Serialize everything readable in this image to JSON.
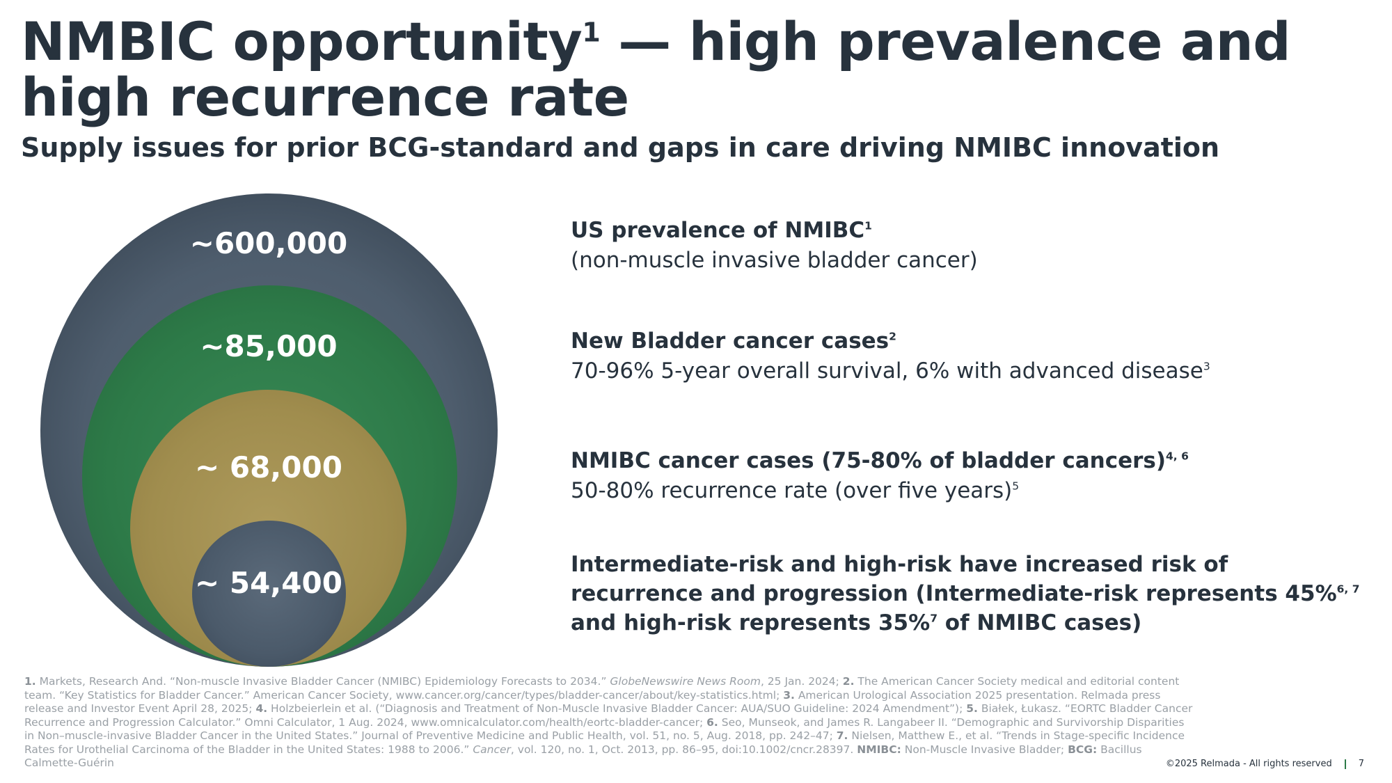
{
  "slide": {
    "title_main": "NMBIC opportunity",
    "title_sup": "1",
    "title_rest": " — high prevalence and high recurrence rate",
    "subtitle": "Supply issues for prior BCG-standard and gaps in care driving NMIBC innovation"
  },
  "circles": [
    {
      "value": "~600,000",
      "color": "#4e5d6d"
    },
    {
      "value": "~85,000",
      "color": "#2d7a48"
    },
    {
      "value": "~ 68,000",
      "color": "#a08d4e"
    },
    {
      "value": "~ 54,400",
      "color": "#4b5a6a"
    }
  ],
  "rows": [
    {
      "heading": "US prevalence of NMIBC",
      "heading_sup": "1",
      "detail": "(non-muscle invasive bladder cancer)",
      "detail_sup": ""
    },
    {
      "heading": "New Bladder cancer cases",
      "heading_sup": "2",
      "detail": "70-96% 5-year overall survival, 6% with advanced disease",
      "detail_sup": "3"
    },
    {
      "heading": "NMIBC cancer cases (75-80% of bladder cancers)",
      "heading_sup": "4, 6",
      "detail": "50-80% recurrence rate (over five years)",
      "detail_sup": "5"
    },
    {
      "heading_a": "Intermediate-risk and high-risk have increased risk of recurrence and progression (Intermediate-risk represents 45%",
      "heading_a_sup": "6, 7",
      "heading_b": " and high-risk represents 35%",
      "heading_b_sup": "7",
      "heading_c": " of NMIBC cases)"
    }
  ],
  "footnotes": {
    "n1_num": "1.",
    "n1": " Markets, Research And. “Non-muscle Invasive Bladder Cancer (NMIBC) Epidemiology Forecasts to 2034.” ",
    "n1_it": "GlobeNewswire News Room",
    "n1_end": ", 25 Jan. 2024; ",
    "n2_num": "2.",
    "n2": " The American Cancer Society medical and editorial content team. “Key Statistics for Bladder Cancer.” American Cancer Society, www.cancer.org/cancer/types/bladder-cancer/about/key-statistics.html; ",
    "n3_num": "3.",
    "n3": "  American Urological Association 2025 presentation. Relmada press release and Investor Event April 28, 2025; ",
    "n4_num": "4.",
    "n4": " Holzbeierlein et al. (“Diagnosis and Treatment of Non-Muscle Invasive Bladder Cancer: AUA/SUO Guideline: 2024 Amendment”); ",
    "n5_num": "5.",
    "n5": " Białek, Łukasz. “EORTC Bladder Cancer Recurrence and Progression Calculator.” Omni Calculator, 1 Aug. 2024, www.omnicalculator.com/health/eortc-bladder-cancer; ",
    "n6_num": "6.",
    "n6": " Seo, Munseok, and James R. Langabeer II. “Demographic and Survivorship Disparities in Non–muscle-invasive Bladder Cancer in the United States.” Journal of Preventive Medicine and Public Health, vol. 51, no. 5, Aug. 2018, pp. 242–47; ",
    "n7_num": "7.",
    "n7": " Nielsen, Matthew E., et al. “Trends in Stage-specific Incidence Rates for Urothelial Carcinoma of the Bladder in the United States: 1988 to 2006.” ",
    "n7_it": "Cancer",
    "n7_end": ", vol. 120, no. 1, Oct. 2013, pp. 86–95, doi:10.1002/cncr.28397. ",
    "abbr1": "NMIBC:",
    "abbr1_txt": " Non-Muscle Invasive Bladder; ",
    "abbr2": "BCG:",
    "abbr2_txt": " Bacillus Calmette-Guérin"
  },
  "footer": {
    "copyright": "©2025 Relmada - All rights reserved",
    "page": "7"
  },
  "colors": {
    "title": "#27323d",
    "green": "#2d7a48",
    "gold": "#a08d4e",
    "slate": "#4e5d6d"
  }
}
